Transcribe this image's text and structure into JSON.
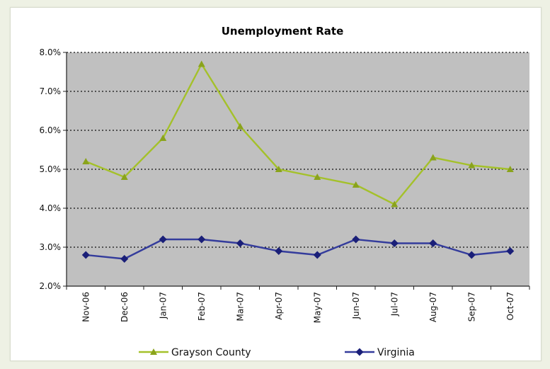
{
  "chart_data": {
    "type": "line",
    "title": "Unemployment Rate",
    "xlabel": "",
    "ylabel": "",
    "categories": [
      "Nov-06",
      "Dec-06",
      "Jan-07",
      "Feb-07",
      "Mar-07",
      "Apr-07",
      "May-07",
      "Jun-07",
      "Jul-07",
      "Aug-07",
      "Sep-07",
      "Oct-07"
    ],
    "ylim": [
      0.02,
      0.08
    ],
    "yticks": [
      0.02,
      0.03,
      0.04,
      0.05,
      0.06,
      0.07,
      0.08
    ],
    "ytick_labels": [
      "2.0%",
      "3.0%",
      "4.0%",
      "5.0%",
      "6.0%",
      "7.0%",
      "8.0%"
    ],
    "grid": "horizontal dotted",
    "plot_background": "#c0c0c0",
    "legend_position": "bottom",
    "series": [
      {
        "name": "Grayson County",
        "marker": "triangle",
        "color": "#a4c12a",
        "marker_color": "#8aa31c",
        "values": [
          0.052,
          0.048,
          0.058,
          0.077,
          0.061,
          0.05,
          0.048,
          0.046,
          0.041,
          0.053,
          0.051,
          0.05
        ]
      },
      {
        "name": "Virginia",
        "marker": "diamond",
        "color": "#343c9c",
        "marker_color": "#1a1f78",
        "values": [
          0.028,
          0.027,
          0.032,
          0.032,
          0.031,
          0.029,
          0.028,
          0.032,
          0.031,
          0.031,
          0.028,
          0.029
        ]
      }
    ]
  }
}
